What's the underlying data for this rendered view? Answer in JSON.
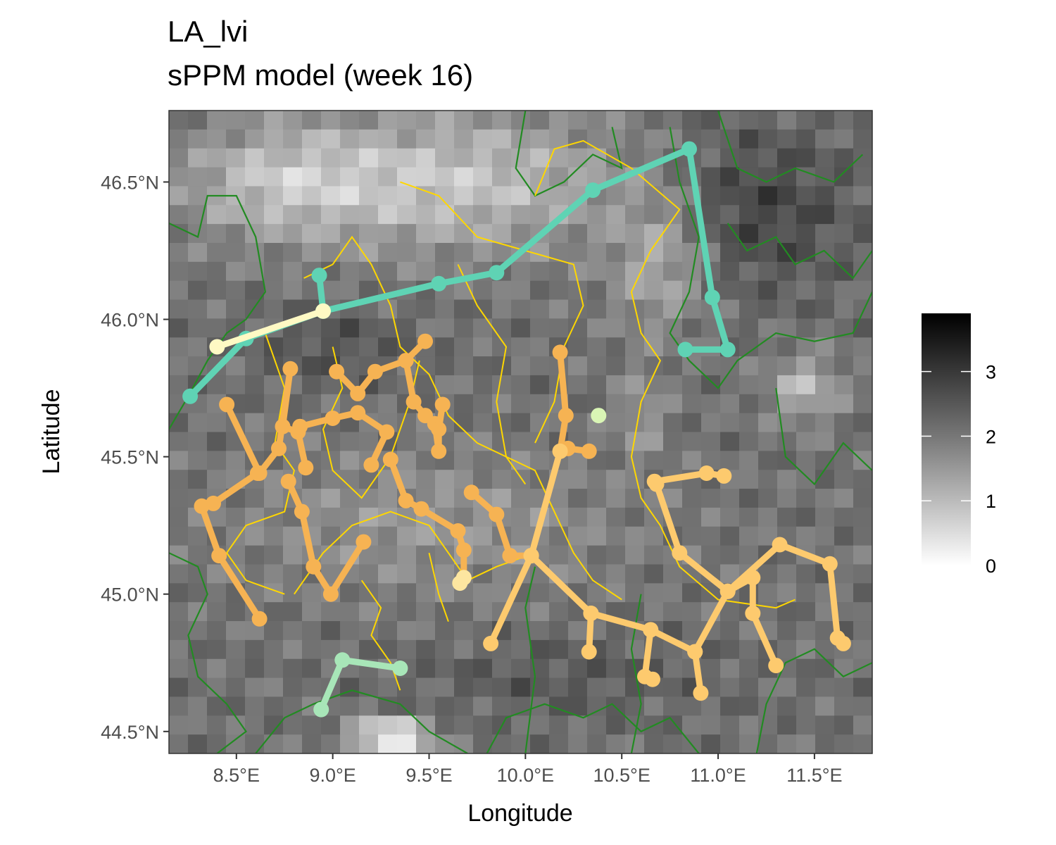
{
  "title": {
    "line1": "LA_lvi",
    "line2": "sPPM model (week 16)"
  },
  "map": {
    "xlabel": "Longitude",
    "ylabel": "Latitude",
    "xlim": [
      8.15,
      11.8
    ],
    "ylim": [
      44.42,
      46.76
    ],
    "x_ticks": [
      {
        "value": 8.5,
        "label": "8.5°E"
      },
      {
        "value": 9.0,
        "label": "9.0°E"
      },
      {
        "value": 9.5,
        "label": "9.5°E"
      },
      {
        "value": 10.0,
        "label": "10.0°E"
      },
      {
        "value": 10.5,
        "label": "10.5°E"
      },
      {
        "value": 11.0,
        "label": "11.0°E"
      },
      {
        "value": 11.5,
        "label": "11.5°E"
      }
    ],
    "y_ticks": [
      {
        "value": 44.5,
        "label": "44.5°N"
      },
      {
        "value": 45.0,
        "label": "45.0°N"
      },
      {
        "value": 45.5,
        "label": "45.5°N"
      },
      {
        "value": 46.0,
        "label": "46.0°N"
      }
    ],
    "y_ticks_top": {
      "value": 46.5,
      "label": "46.5°N"
    },
    "legend": {
      "min": 0,
      "max": 3.9,
      "ticks": [
        {
          "value": 0,
          "label": "0"
        },
        {
          "value": 1,
          "label": "1"
        },
        {
          "value": 2,
          "label": "2"
        },
        {
          "value": 3,
          "label": "3"
        }
      ]
    },
    "colors": {
      "teal": "#5fd3b4",
      "light_yellow": "#fff9c4",
      "light_green": "#a8e6b8",
      "pale_green": "#d9f5b5",
      "orange": "#f6b353",
      "light_orange": "#fdca6e",
      "pale_orange": "#fde6a0",
      "border_green": "#228b22",
      "border_yellow": "#ffd700"
    },
    "tracks": [
      {
        "id": "teal-north",
        "color": "#5fd3b4",
        "points": [
          [
            8.93,
            46.16
          ],
          [
            8.95,
            46.03
          ],
          [
            9.55,
            46.13
          ],
          [
            9.85,
            46.17
          ],
          [
            10.35,
            46.47
          ],
          [
            10.85,
            46.62
          ],
          [
            10.97,
            46.08
          ],
          [
            11.05,
            45.89
          ],
          [
            10.83,
            45.89
          ]
        ]
      },
      {
        "id": "teal-west",
        "color": "#5fd3b4",
        "points": [
          [
            8.95,
            46.03
          ],
          [
            8.55,
            45.93
          ],
          [
            8.26,
            45.72
          ]
        ]
      },
      {
        "id": "yellow-west",
        "color": "#fff9c4",
        "points": [
          [
            8.4,
            45.9
          ],
          [
            8.95,
            46.03
          ]
        ]
      },
      {
        "id": "green-south",
        "color": "#a8e6b8",
        "points": [
          [
            8.94,
            44.58
          ],
          [
            9.05,
            44.76
          ],
          [
            9.35,
            44.73
          ]
        ]
      },
      {
        "id": "orange-a",
        "color": "#f6b353",
        "points": [
          [
            8.45,
            45.69
          ],
          [
            8.62,
            45.44
          ],
          [
            8.72,
            45.53
          ],
          [
            8.78,
            45.82
          ],
          [
            8.74,
            45.61
          ],
          [
            8.82,
            45.59
          ],
          [
            8.86,
            45.46
          ]
        ]
      },
      {
        "id": "orange-b",
        "color": "#f6b353",
        "points": [
          [
            8.38,
            45.33
          ],
          [
            8.61,
            45.44
          ]
        ]
      },
      {
        "id": "orange-c",
        "color": "#f6b353",
        "points": [
          [
            8.32,
            45.32
          ],
          [
            8.41,
            45.14
          ],
          [
            8.62,
            44.91
          ]
        ]
      },
      {
        "id": "orange-d",
        "color": "#f6b353",
        "points": [
          [
            8.77,
            45.41
          ],
          [
            8.84,
            45.3
          ],
          [
            8.9,
            45.1
          ],
          [
            8.99,
            45.0
          ],
          [
            9.16,
            45.19
          ]
        ]
      },
      {
        "id": "orange-e",
        "color": "#f6b353",
        "points": [
          [
            8.83,
            45.61
          ],
          [
            9.0,
            45.64
          ],
          [
            9.13,
            45.66
          ],
          [
            9.28,
            45.59
          ],
          [
            9.2,
            45.47
          ]
        ]
      },
      {
        "id": "orange-f",
        "color": "#f6b353",
        "points": [
          [
            9.02,
            45.81
          ],
          [
            9.13,
            45.73
          ],
          [
            9.22,
            45.81
          ],
          [
            9.38,
            45.85
          ],
          [
            9.48,
            45.92
          ]
        ]
      },
      {
        "id": "orange-g",
        "color": "#f6b353",
        "points": [
          [
            9.38,
            45.85
          ],
          [
            9.42,
            45.7
          ],
          [
            9.48,
            45.65
          ],
          [
            9.53,
            45.62
          ],
          [
            9.55,
            45.52
          ],
          [
            9.55,
            45.6
          ],
          [
            9.57,
            45.69
          ]
        ]
      },
      {
        "id": "orange-h",
        "color": "#f6b353",
        "points": [
          [
            9.3,
            45.49
          ],
          [
            9.38,
            45.34
          ],
          [
            9.46,
            45.31
          ],
          [
            9.65,
            45.23
          ],
          [
            9.68,
            45.16
          ],
          [
            9.68,
            45.06
          ]
        ]
      },
      {
        "id": "orange-i",
        "color": "#f6b353",
        "points": [
          [
            9.72,
            45.37
          ],
          [
            9.85,
            45.29
          ],
          [
            9.92,
            45.14
          ],
          [
            10.03,
            45.14
          ]
        ]
      },
      {
        "id": "orange-j",
        "color": "#f6b353",
        "points": [
          [
            10.18,
            45.88
          ],
          [
            10.21,
            45.65
          ],
          [
            10.18,
            45.52
          ],
          [
            10.22,
            45.53
          ],
          [
            10.33,
            45.52
          ]
        ]
      },
      {
        "id": "light-orange-a",
        "color": "#fdca6e",
        "points": [
          [
            9.82,
            44.82
          ],
          [
            10.03,
            45.14
          ],
          [
            10.18,
            45.52
          ]
        ]
      },
      {
        "id": "light-orange-b",
        "color": "#fdca6e",
        "points": [
          [
            10.03,
            45.14
          ],
          [
            10.34,
            44.93
          ],
          [
            10.65,
            44.87
          ],
          [
            10.88,
            44.79
          ],
          [
            10.91,
            44.64
          ]
        ]
      },
      {
        "id": "light-orange-c",
        "color": "#fdca6e",
        "points": [
          [
            10.34,
            44.93
          ],
          [
            10.33,
            44.79
          ]
        ]
      },
      {
        "id": "light-orange-d",
        "color": "#fdca6e",
        "points": [
          [
            10.65,
            44.87
          ],
          [
            10.62,
            44.7
          ],
          [
            10.66,
            44.69
          ]
        ]
      },
      {
        "id": "light-orange-e",
        "color": "#fdca6e",
        "points": [
          [
            10.67,
            45.41
          ],
          [
            10.94,
            45.44
          ],
          [
            11.03,
            45.43
          ]
        ]
      },
      {
        "id": "light-orange-f",
        "color": "#fdca6e",
        "points": [
          [
            10.68,
            45.4
          ],
          [
            10.8,
            45.15
          ],
          [
            11.05,
            45.01
          ],
          [
            11.32,
            45.18
          ],
          [
            11.58,
            45.11
          ],
          [
            11.62,
            44.84
          ],
          [
            11.65,
            44.82
          ]
        ]
      },
      {
        "id": "light-orange-g",
        "color": "#fdca6e",
        "points": [
          [
            10.88,
            44.79
          ],
          [
            11.05,
            45.01
          ],
          [
            11.18,
            45.06
          ],
          [
            11.18,
            44.93
          ],
          [
            11.3,
            44.74
          ]
        ]
      },
      {
        "id": "pale-orange",
        "color": "#fde6a0",
        "points": [
          [
            9.66,
            45.04
          ],
          [
            9.68,
            45.06
          ]
        ]
      },
      {
        "id": "pale-green-dot",
        "color": "#d9f5b5",
        "points": [
          [
            10.38,
            45.65
          ]
        ]
      }
    ]
  }
}
